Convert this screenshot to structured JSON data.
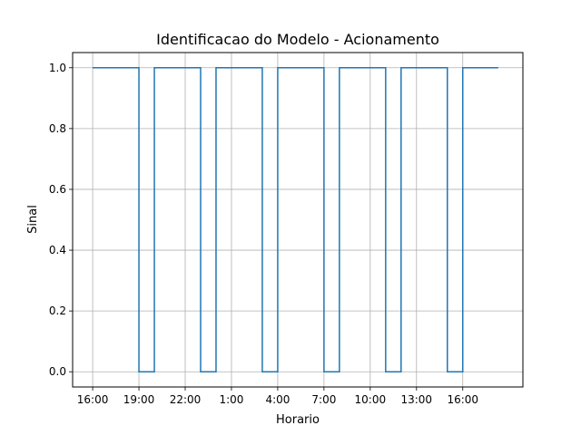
{
  "chart_data": {
    "type": "line",
    "title": "Identificacao do Modelo - Acionamento",
    "xlabel": "Horario",
    "ylabel": "Sinal",
    "x_tick_labels": [
      "16:00",
      "19:00",
      "22:00",
      "1:00",
      "4:00",
      "7:00",
      "10:00",
      "13:00",
      "16:00"
    ],
    "y_tick_labels": [
      "0.0",
      "0.2",
      "0.4",
      "0.6",
      "0.8",
      "1.0"
    ],
    "x_ticks_hours": [
      0,
      3,
      6,
      9,
      12,
      15,
      18,
      21,
      24
    ],
    "y_ticks": [
      0.0,
      0.2,
      0.4,
      0.6,
      0.8,
      1.0
    ],
    "xlim_hours_from_start": [
      -1.3,
      27.9
    ],
    "ylim": [
      -0.05,
      1.05
    ],
    "grid": true,
    "series": [
      {
        "color": "#1f77b4",
        "step_points": [
          {
            "x": 0.0,
            "y": 1.0
          },
          {
            "x": 3.0,
            "y": 1.0
          },
          {
            "x": 3.0,
            "y": 0.0
          },
          {
            "x": 4.0,
            "y": 0.0
          },
          {
            "x": 4.0,
            "y": 1.0
          },
          {
            "x": 7.0,
            "y": 1.0
          },
          {
            "x": 7.0,
            "y": 0.0
          },
          {
            "x": 8.0,
            "y": 0.0
          },
          {
            "x": 8.0,
            "y": 1.0
          },
          {
            "x": 11.0,
            "y": 1.0
          },
          {
            "x": 11.0,
            "y": 0.0
          },
          {
            "x": 12.0,
            "y": 0.0
          },
          {
            "x": 12.0,
            "y": 1.0
          },
          {
            "x": 15.0,
            "y": 1.0
          },
          {
            "x": 15.0,
            "y": 0.0
          },
          {
            "x": 16.0,
            "y": 0.0
          },
          {
            "x": 16.0,
            "y": 1.0
          },
          {
            "x": 19.0,
            "y": 1.0
          },
          {
            "x": 19.0,
            "y": 0.0
          },
          {
            "x": 20.0,
            "y": 0.0
          },
          {
            "x": 20.0,
            "y": 1.0
          },
          {
            "x": 23.0,
            "y": 1.0
          },
          {
            "x": 23.0,
            "y": 0.0
          },
          {
            "x": 24.0,
            "y": 0.0
          },
          {
            "x": 24.0,
            "y": 1.0
          },
          {
            "x": 26.3,
            "y": 1.0
          }
        ]
      }
    ]
  },
  "colors": {
    "line": "#1f77b4",
    "grid": "#b0b0b0",
    "axes": "#000000",
    "background": "#ffffff"
  }
}
